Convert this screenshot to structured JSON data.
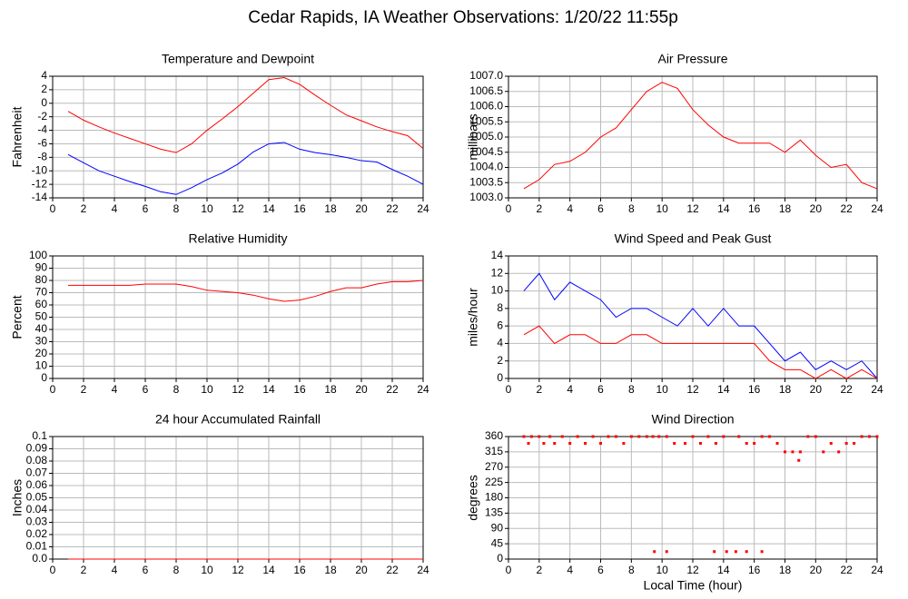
{
  "title": "Cedar Rapids, IA Weather Observations: 1/20/22 11:55p",
  "chart_data": [
    {
      "type": "line",
      "title": "Temperature and Dewpoint",
      "ylabel": "Fahrenheit",
      "xlim": [
        0,
        24
      ],
      "xticks": [
        0,
        2,
        4,
        6,
        8,
        10,
        12,
        14,
        16,
        18,
        20,
        22,
        24
      ],
      "ylim": [
        -14,
        4
      ],
      "yticks": [
        -14,
        -12,
        -10,
        -8,
        -6,
        -4,
        -2,
        0,
        2,
        4
      ],
      "grid": true,
      "x": [
        1,
        2,
        3,
        4,
        5,
        6,
        7,
        8,
        9,
        10,
        11,
        12,
        13,
        14,
        15,
        16,
        17,
        18,
        19,
        20,
        21,
        22,
        23,
        24
      ],
      "series": [
        {
          "color": "#ff0000",
          "values": [
            -1.2,
            -2.5,
            -3.5,
            -4.4,
            -5.2,
            -6,
            -6.8,
            -7.3,
            -6,
            -4,
            -2.3,
            -0.5,
            1.5,
            3.5,
            3.8,
            2.8,
            1.2,
            -0.3,
            -1.7,
            -2.6,
            -3.5,
            -4.2,
            -4.8,
            -6.7
          ]
        },
        {
          "color": "#0000ff",
          "values": [
            -7.6,
            -8.8,
            -10,
            -10.8,
            -11.6,
            -12.3,
            -13.1,
            -13.5,
            -12.5,
            -11.3,
            -10.3,
            -9,
            -7.2,
            -6,
            -5.8,
            -6.8,
            -7.3,
            -7.6,
            -8,
            -8.5,
            -8.7,
            -9.8,
            -10.8,
            -12
          ]
        }
      ]
    },
    {
      "type": "line",
      "title": "Air Pressure",
      "ylabel": "millibars",
      "xlim": [
        0,
        24
      ],
      "xticks": [
        0,
        2,
        4,
        6,
        8,
        10,
        12,
        14,
        16,
        18,
        20,
        22,
        24
      ],
      "ylim": [
        1003,
        1007
      ],
      "yticks": [
        {
          "value": 1003,
          "label": "1003.0"
        },
        1003.5,
        {
          "value": 1004,
          "label": "1004.0"
        },
        1004.5,
        {
          "value": 1005,
          "label": "1005.0"
        },
        1005.5,
        {
          "value": 1006,
          "label": "1006.0"
        },
        1006.5,
        {
          "value": 1007,
          "label": "1007.0"
        }
      ],
      "grid": true,
      "x": [
        1,
        2,
        3,
        4,
        5,
        6,
        7,
        8,
        9,
        10,
        11,
        12,
        13,
        14,
        15,
        16,
        17,
        18,
        19,
        20,
        21,
        22,
        23,
        24
      ],
      "series": [
        {
          "color": "#ff0000",
          "values": [
            1003.3,
            1003.6,
            1004.1,
            1004.2,
            1004.5,
            1005.0,
            1005.3,
            1005.9,
            1006.5,
            1006.8,
            1006.6,
            1005.9,
            1005.4,
            1005.0,
            1004.8,
            1004.8,
            1004.8,
            1004.5,
            1004.9,
            1004.4,
            1004.0,
            1004.1,
            1003.5,
            1003.3
          ]
        }
      ]
    },
    {
      "type": "line",
      "title": "Relative Humidity",
      "ylabel": "Percent",
      "xlim": [
        0,
        24
      ],
      "xticks": [
        0,
        2,
        4,
        6,
        8,
        10,
        12,
        14,
        16,
        18,
        20,
        22,
        24
      ],
      "ylim": [
        0,
        100
      ],
      "yticks": [
        0,
        10,
        20,
        30,
        40,
        50,
        60,
        70,
        80,
        90,
        100
      ],
      "grid": true,
      "x": [
        1,
        2,
        3,
        4,
        5,
        6,
        7,
        8,
        9,
        10,
        11,
        12,
        13,
        14,
        15,
        16,
        17,
        18,
        19,
        20,
        21,
        22,
        23,
        24
      ],
      "series": [
        {
          "color": "#ff0000",
          "values": [
            76,
            76,
            76,
            76,
            76,
            77,
            77,
            77,
            75,
            72,
            71,
            70,
            68,
            65,
            63,
            64,
            67,
            71,
            74,
            74,
            77,
            79,
            79,
            80
          ]
        }
      ]
    },
    {
      "type": "line",
      "title": "Wind Speed and Peak Gust",
      "ylabel": "miles/hour",
      "xlim": [
        0,
        24
      ],
      "xticks": [
        0,
        2,
        4,
        6,
        8,
        10,
        12,
        14,
        16,
        18,
        20,
        22,
        24
      ],
      "ylim": [
        0,
        14
      ],
      "yticks": [
        0,
        2,
        4,
        6,
        8,
        10,
        12,
        14
      ],
      "grid": true,
      "x": [
        1,
        2,
        3,
        4,
        5,
        6,
        7,
        8,
        9,
        10,
        11,
        12,
        13,
        14,
        15,
        16,
        17,
        18,
        19,
        20,
        21,
        22,
        23,
        24
      ],
      "series": [
        {
          "color": "#0000ff",
          "values": [
            10,
            12,
            9,
            11,
            10,
            9,
            7,
            8,
            8,
            7,
            6,
            8,
            6,
            8,
            6,
            6,
            4,
            2,
            3,
            1,
            2,
            1,
            2,
            0
          ]
        },
        {
          "color": "#ff0000",
          "values": [
            5,
            6,
            4,
            5,
            5,
            4,
            4,
            5,
            5,
            4,
            4,
            4,
            4,
            4,
            4,
            4,
            2,
            1,
            1,
            0,
            1,
            0,
            1,
            0
          ]
        }
      ]
    },
    {
      "type": "line",
      "title": "24 hour Accumulated Rainfall",
      "ylabel": "Inches",
      "xlim": [
        0,
        24
      ],
      "xticks": [
        0,
        2,
        4,
        6,
        8,
        10,
        12,
        14,
        16,
        18,
        20,
        22,
        24
      ],
      "ylim": [
        0,
        0.1
      ],
      "yticks": [
        {
          "value": 0,
          "label": "0.0"
        },
        0.01,
        0.02,
        0.03,
        0.04,
        0.05,
        0.06,
        0.07,
        0.08,
        0.09,
        0.1
      ],
      "grid": true,
      "x": [
        1,
        24
      ],
      "series": [
        {
          "color": "#ff0000",
          "values": [
            0,
            0
          ]
        }
      ]
    },
    {
      "type": "scatter",
      "title": "Wind Direction",
      "ylabel": "degrees",
      "xlabel": "Local Time (hour)",
      "xlim": [
        0,
        24
      ],
      "xticks": [
        0,
        2,
        4,
        6,
        8,
        10,
        12,
        14,
        16,
        18,
        20,
        22,
        24
      ],
      "ylim": [
        0,
        360
      ],
      "yticks": [
        0,
        45,
        90,
        135,
        180,
        225,
        270,
        315,
        360
      ],
      "grid": true,
      "x": [
        1,
        1.3,
        1.5,
        2,
        2.3,
        2.7,
        3,
        3.5,
        4,
        4.5,
        5,
        5.5,
        6,
        6.5,
        7,
        7.5,
        8,
        8.5,
        9,
        9.4,
        9.5,
        9.8,
        10.3,
        10.3,
        10.8,
        11.5,
        12,
        12.5,
        13,
        13.4,
        13.5,
        14,
        14.2,
        14.8,
        15,
        15.5,
        15.5,
        16,
        16.5,
        16.5,
        17,
        17.5,
        18,
        18.5,
        18.9,
        19,
        19.5,
        20,
        20.5,
        21,
        21.5,
        22,
        22.5,
        23,
        23.5,
        24
      ],
      "series": [
        {
          "color": "#ff0000",
          "values": [
            360,
            340,
            360,
            360,
            340,
            360,
            340,
            360,
            340,
            360,
            340,
            360,
            340,
            360,
            360,
            340,
            360,
            360,
            360,
            360,
            22,
            360,
            22,
            360,
            340,
            340,
            360,
            340,
            360,
            22,
            340,
            360,
            22,
            22,
            360,
            22,
            340,
            340,
            22,
            360,
            360,
            340,
            315,
            315,
            290,
            315,
            360,
            360,
            315,
            340,
            315,
            340,
            340,
            360,
            360,
            360
          ]
        }
      ]
    }
  ]
}
